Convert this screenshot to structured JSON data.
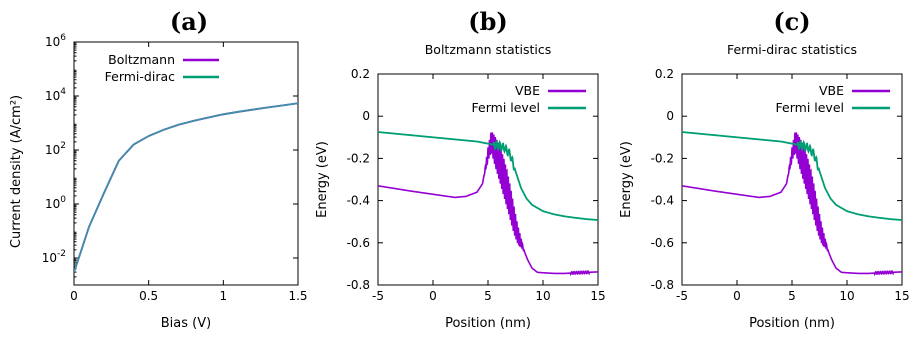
{
  "colors": {
    "purple": "#9400d3",
    "green": "#009e73",
    "overlay": "#3f8fa6"
  },
  "chart_data": [
    {
      "type": "line",
      "panel_label": "(a)",
      "title": "",
      "xlabel": "Bias (V)",
      "ylabel": "Current density (A/cm²)",
      "xlim": [
        0,
        1.5
      ],
      "ylim": [
        0.001,
        1000000
      ],
      "yscale": "log",
      "xticks": [
        0,
        0.5,
        1,
        1.5
      ],
      "xtick_labels": [
        "0",
        "0.5",
        "1",
        "1.5"
      ],
      "yticks": [
        0.01,
        1,
        100,
        10000,
        1000000
      ],
      "ytick_labels": [
        {
          "base": "10",
          "exp": "-2"
        },
        {
          "base": "10",
          "exp": "0"
        },
        {
          "base": "10",
          "exp": "2"
        },
        {
          "base": "10",
          "exp": "4"
        },
        {
          "base": "10",
          "exp": "6"
        }
      ],
      "legend_position": "top-right",
      "series": [
        {
          "name": "Boltzmann",
          "color": "#9400d3",
          "x": [
            0,
            0.05,
            0.1,
            0.2,
            0.3,
            0.4,
            0.5,
            0.6,
            0.7,
            0.8,
            0.9,
            1.0,
            1.1,
            1.2,
            1.3,
            1.4,
            1.5
          ],
          "y": [
            0.003,
            0.02,
            0.14,
            2.5,
            40,
            160,
            330,
            560,
            860,
            1200,
            1600,
            2100,
            2600,
            3150,
            3800,
            4500,
            5400
          ]
        },
        {
          "name": "Fermi-dirac",
          "color": "#009e73",
          "x": [
            0,
            0.05,
            0.1,
            0.2,
            0.3,
            0.4,
            0.5,
            0.6,
            0.7,
            0.8,
            0.9,
            1.0,
            1.1,
            1.2,
            1.3,
            1.4,
            1.5
          ],
          "y": [
            0.003,
            0.02,
            0.14,
            2.5,
            40,
            160,
            330,
            560,
            860,
            1200,
            1600,
            2100,
            2600,
            3150,
            3800,
            4500,
            5400
          ]
        }
      ]
    },
    {
      "type": "line",
      "panel_label": "(b)",
      "title": "Boltzmann statistics",
      "xlabel": "Position (nm)",
      "ylabel": "Energy (eV)",
      "xlim": [
        -5,
        15
      ],
      "ylim": [
        -0.8,
        0.2
      ],
      "xticks": [
        -5,
        0,
        5,
        10,
        15
      ],
      "xtick_labels": [
        "-5",
        "0",
        "5",
        "10",
        "15"
      ],
      "yticks": [
        -0.8,
        -0.6,
        -0.4,
        -0.2,
        0,
        0.2
      ],
      "ytick_labels": [
        "-0.8",
        "-0.6",
        "-0.4",
        "-0.2",
        "0",
        "0.2"
      ],
      "legend_position": "top-right",
      "series": [
        {
          "name": "VBE",
          "color": "#9400d3",
          "x": [
            -5,
            -2,
            0,
            2,
            3,
            4,
            4.5,
            5,
            5.3,
            5.6,
            5.9,
            6.2,
            6.5,
            6.8,
            7.1,
            7.4,
            7.7,
            8,
            8.3,
            8.6,
            9,
            9.5,
            10,
            11,
            12,
            13,
            14,
            15
          ],
          "y": [
            -0.33,
            -0.355,
            -0.37,
            -0.385,
            -0.38,
            -0.36,
            -0.32,
            -0.18,
            -0.12,
            -0.16,
            -0.2,
            -0.25,
            -0.3,
            -0.36,
            -0.43,
            -0.5,
            -0.56,
            -0.6,
            -0.64,
            -0.68,
            -0.72,
            -0.74,
            -0.742,
            -0.745,
            -0.745,
            -0.742,
            -0.74,
            -0.738
          ]
        },
        {
          "name": "Fermi level",
          "color": "#009e73",
          "x": [
            -5,
            -2,
            0,
            2,
            4,
            5,
            6,
            6.5,
            7,
            7.5,
            8,
            8.5,
            9,
            9.5,
            10,
            11,
            12,
            13,
            14,
            15
          ],
          "y": [
            -0.075,
            -0.09,
            -0.1,
            -0.11,
            -0.12,
            -0.13,
            -0.14,
            -0.15,
            -0.18,
            -0.26,
            -0.34,
            -0.39,
            -0.42,
            -0.435,
            -0.45,
            -0.465,
            -0.475,
            -0.482,
            -0.488,
            -0.492
          ]
        }
      ]
    },
    {
      "type": "line",
      "panel_label": "(c)",
      "title": "Fermi-dirac statistics",
      "xlabel": "Position (nm)",
      "ylabel": "Energy (eV)",
      "xlim": [
        -5,
        15
      ],
      "ylim": [
        -0.8,
        0.2
      ],
      "xticks": [
        -5,
        0,
        5,
        10,
        15
      ],
      "xtick_labels": [
        "-5",
        "0",
        "5",
        "10",
        "15"
      ],
      "yticks": [
        -0.8,
        -0.6,
        -0.4,
        -0.2,
        0,
        0.2
      ],
      "ytick_labels": [
        "-0.8",
        "-0.6",
        "-0.4",
        "-0.2",
        "0",
        "0.2"
      ],
      "legend_position": "top-right",
      "series": [
        {
          "name": "VBE",
          "color": "#9400d3",
          "x": [
            -5,
            -2,
            0,
            2,
            3,
            4,
            4.5,
            5,
            5.3,
            5.6,
            5.9,
            6.2,
            6.5,
            6.8,
            7.1,
            7.4,
            7.7,
            8,
            8.3,
            8.6,
            9,
            9.5,
            10,
            11,
            12,
            13,
            14,
            15
          ],
          "y": [
            -0.33,
            -0.355,
            -0.37,
            -0.385,
            -0.38,
            -0.36,
            -0.32,
            -0.18,
            -0.12,
            -0.16,
            -0.2,
            -0.25,
            -0.3,
            -0.36,
            -0.43,
            -0.5,
            -0.56,
            -0.6,
            -0.64,
            -0.68,
            -0.72,
            -0.74,
            -0.742,
            -0.745,
            -0.745,
            -0.742,
            -0.74,
            -0.738
          ]
        },
        {
          "name": "Fermi level",
          "color": "#009e73",
          "x": [
            -5,
            -2,
            0,
            2,
            4,
            5,
            6,
            6.5,
            7,
            7.5,
            8,
            8.5,
            9,
            9.5,
            10,
            11,
            12,
            13,
            14,
            15
          ],
          "y": [
            -0.075,
            -0.09,
            -0.1,
            -0.11,
            -0.12,
            -0.13,
            -0.14,
            -0.15,
            -0.18,
            -0.26,
            -0.34,
            -0.39,
            -0.42,
            -0.435,
            -0.45,
            -0.465,
            -0.475,
            -0.482,
            -0.488,
            -0.492
          ]
        }
      ]
    }
  ]
}
